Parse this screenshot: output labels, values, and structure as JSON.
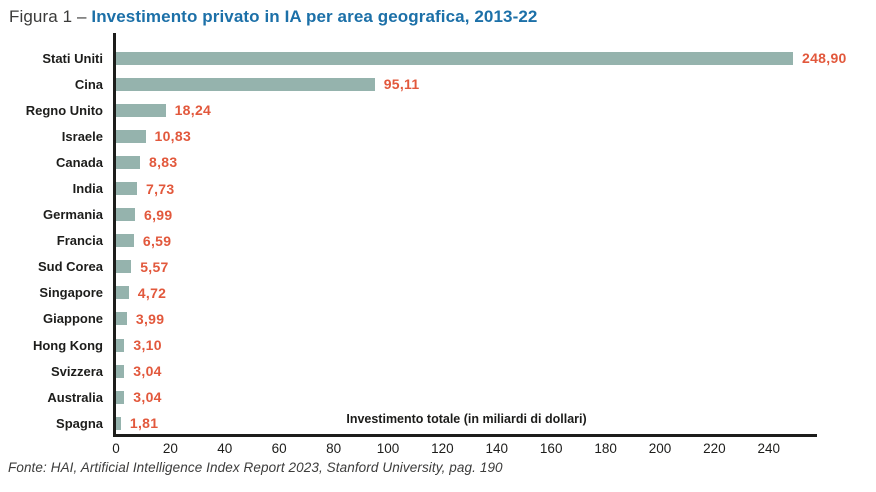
{
  "title": {
    "prefix": "Figura 1 – ",
    "main": "Investimento privato in IA per area geografica, 2013-22"
  },
  "chart_data": {
    "type": "bar",
    "orientation": "horizontal",
    "title": "Investimento privato in IA per area geografica, 2013-22",
    "xlabel": "Investimento totale (in miliardi di dollari)",
    "xlim": [
      0,
      258
    ],
    "x_ticks": [
      0,
      20,
      40,
      60,
      80,
      100,
      120,
      140,
      160,
      180,
      200,
      220,
      240
    ],
    "grid": false,
    "legend": false,
    "categories": [
      "Stati Uniti",
      "Cina",
      "Regno Unito",
      "Israele",
      "Canada",
      "India",
      "Germania",
      "Francia",
      "Sud Corea",
      "Singapore",
      "Giappone",
      "Hong Kong",
      "Svizzera",
      "Australia",
      "Spagna"
    ],
    "values": [
      248.9,
      95.11,
      18.24,
      10.83,
      8.83,
      7.73,
      6.99,
      6.59,
      5.57,
      4.72,
      3.99,
      3.1,
      3.04,
      3.04,
      1.81
    ],
    "value_labels": [
      "248,90",
      "95,11",
      "18,24",
      "10,83",
      "8,83",
      "7,73",
      "6,99",
      "6,59",
      "5,57",
      "4,72",
      "3,99",
      "3,10",
      "3,04",
      "3,04",
      "1,81"
    ]
  },
  "footer": "Fonte: HAI, Artificial Intelligence Index Report 2023, Stanford University, pag. 190",
  "colors": {
    "bar": "#95B3AD",
    "value": "#E2583C",
    "axis": "#1D1D1B",
    "title_accent": "#1C70A8",
    "title_prefix": "#3B3B3A",
    "footer": "#3C3C3B",
    "background": "#FFFFFF"
  }
}
